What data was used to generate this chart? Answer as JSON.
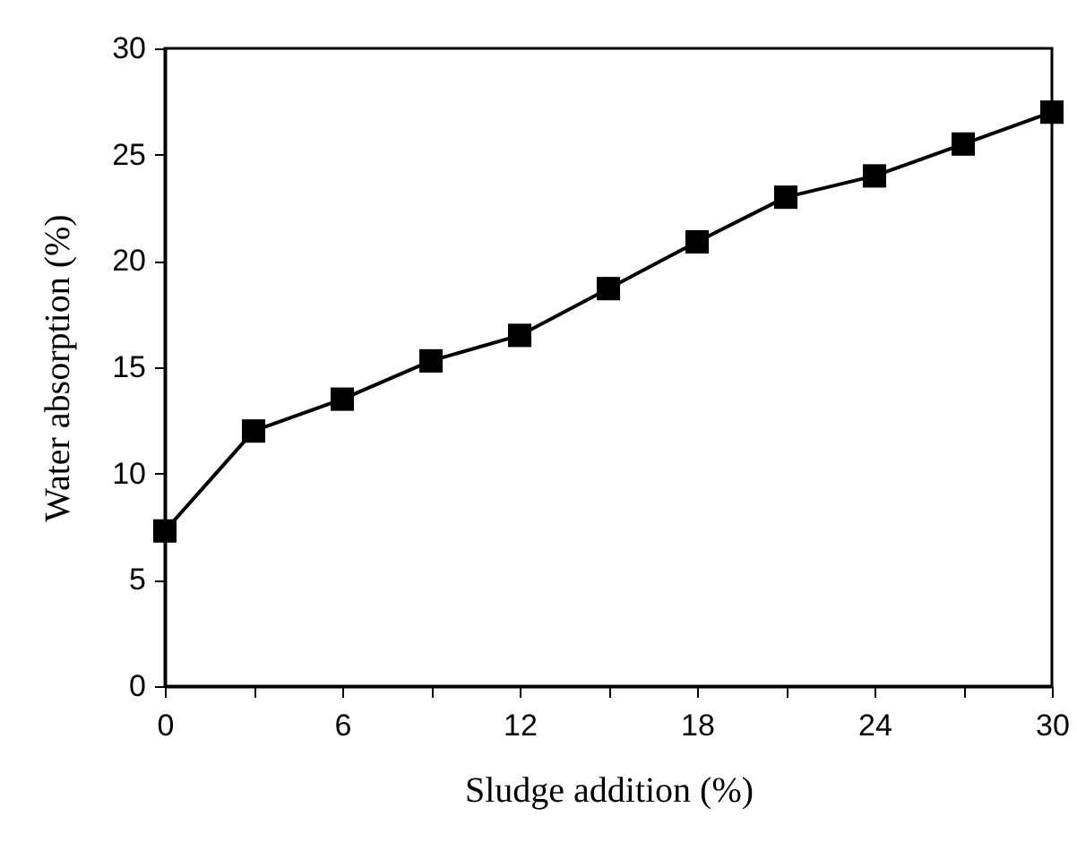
{
  "chart_data": {
    "type": "line",
    "xlabel": "Sludge addition (%)",
    "ylabel": "Water absorption (%)",
    "x": [
      0,
      3,
      6,
      9,
      12,
      15,
      18,
      21,
      24,
      27,
      30
    ],
    "series": [
      {
        "color": "#000000",
        "values": [
          7.3,
          12.0,
          13.5,
          15.3,
          16.5,
          18.7,
          20.9,
          23.0,
          24.0,
          25.5,
          27.0
        ]
      }
    ],
    "xlim": [
      0,
      30
    ],
    "xticks": [
      0,
      {
        "value": 3,
        "label": null
      },
      6,
      {
        "value": 9,
        "label": null
      },
      12,
      {
        "value": 15,
        "label": null
      },
      18,
      {
        "value": 21,
        "label": null
      },
      24,
      {
        "value": 27,
        "label": null
      },
      30
    ],
    "ylim": [
      0,
      30
    ],
    "yticks": [
      0,
      5,
      10,
      15,
      20,
      25,
      30
    ],
    "grid": false,
    "marker": "square",
    "line_style": "solid"
  }
}
